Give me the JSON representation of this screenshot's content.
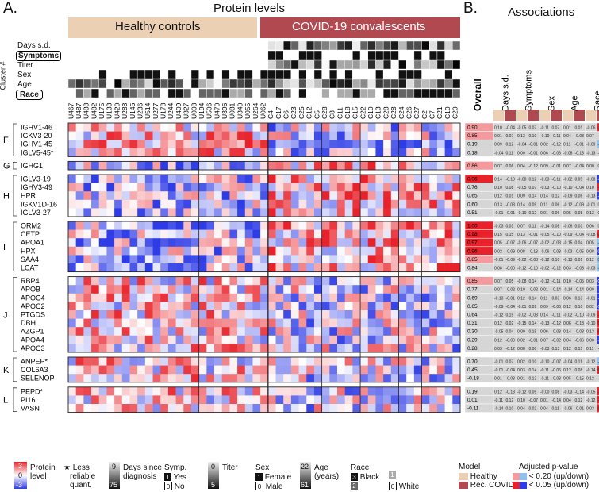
{
  "panel_a": {
    "label": "A.",
    "title": "Protein levels",
    "healthy_label": "Healthy controls",
    "covid_label": "COVID-19 convalescents",
    "cluster_label": "Cluster #",
    "annotation_rows": [
      "Days s.d.",
      "Symptoms",
      "Titer",
      "Sex",
      "Age",
      "Race"
    ],
    "healthy_samples": [
      "U467",
      "U487",
      "U488",
      "U482",
      "U175",
      "U133",
      "U420",
      "U288",
      "U145",
      "U236",
      "U514",
      "U277",
      "U178",
      "U244",
      "U409",
      "U327",
      "U008",
      "U194",
      "U506",
      "U470",
      "U396",
      "U081",
      "U340",
      "U055",
      "U264",
      "U062"
    ],
    "covid_samples": [
      "C4",
      "C17",
      "C6",
      "C23",
      "C25",
      "C12",
      "C5",
      "C28",
      "C8",
      "C11",
      "C18",
      "C15",
      "C22",
      "C10",
      "C13",
      "C28",
      "C28",
      "C24",
      "C26",
      "C27",
      "C2",
      "C7",
      "C21",
      "C10",
      "C20"
    ]
  },
  "panel_b": {
    "label": "B.",
    "title": "Associations",
    "columns": [
      "Overall",
      "Days s.d.",
      "Symptoms",
      "Sex",
      "Age",
      "Race"
    ]
  },
  "legend": {
    "protein_level": "Protein level",
    "protein_ticks": [
      "3",
      "0",
      "-3"
    ],
    "star_note": "Less reliable quant.",
    "days_note": "Days since diagnosis",
    "days_ticks": [
      "9",
      "75"
    ],
    "symp_title": "Symp.",
    "symp_yes": "Yes",
    "symp_no": "No",
    "titer_title": "Titer",
    "titer_ticks": [
      "0",
      "5"
    ],
    "sex_title": "Sex",
    "sex_female": "Female",
    "sex_male": "Male",
    "age_title": "Age (years)",
    "age_ticks": [
      "22",
      "61"
    ],
    "race_title": "Race",
    "race_black": "Black",
    "race_white": "White",
    "race_codes": [
      "3",
      "2",
      "1",
      "0"
    ],
    "model_title": "Model",
    "model_healthy": "Healthy",
    "model_rec": "Rec. COVID",
    "pval_title": "Adjusted p-value",
    "pval_020": "< 0.20 (up/down)",
    "pval_005": "< 0.05 (up/down)"
  },
  "colors": {
    "healthy": "#ecd0b4",
    "covid": "#b04a50",
    "red": "#e8222a",
    "blue": "#2e3ce6",
    "light_red": "#f49a9f",
    "light_blue": "#8fc1ee",
    "grey_cell": "#d6d6d6"
  },
  "chart_data": {
    "type": "heatmap",
    "value_range": [
      -3,
      3
    ],
    "groups": [
      {
        "cluster": "F",
        "proteins": [
          "IGHV1-46",
          "IGKV3-20",
          "IGHV1-45",
          "IGLV5-45*"
        ]
      },
      {
        "cluster": "G",
        "proteins": [
          "IGHG1"
        ]
      },
      {
        "cluster": "H",
        "proteins": [
          "IGLV3-19",
          "IGHV3-49",
          "HPR",
          "IGKV1D-16",
          "IGLV3-27"
        ]
      },
      {
        "cluster": "I",
        "proteins": [
          "ORM2",
          "CETP",
          "APOA1",
          "HPX",
          "SAA4",
          "LCAT"
        ]
      },
      {
        "cluster": "J",
        "proteins": [
          "RBP4",
          "APOB",
          "APOC4",
          "APOC2",
          "PTGDS",
          "DBH",
          "AZGP1",
          "APOA4",
          "APOC3"
        ]
      },
      {
        "cluster": "K",
        "proteins": [
          "ANPEP*",
          "COL6A3",
          "SELENOP"
        ]
      },
      {
        "cluster": "L",
        "proteins": [
          "PEPD*",
          "PI16",
          "VASN"
        ]
      }
    ],
    "overall": [
      "0.90",
      "0.85",
      "0.19",
      "0.18",
      "0.86",
      "0.96",
      "0.76",
      "0.65",
      "0.60",
      "0.51",
      "1.00",
      "0.98",
      "0.97",
      "0.96",
      "0.85",
      "0.84",
      "0.85",
      "0.77",
      "0.69",
      "0.65",
      "0.64",
      "0.31",
      "0.30",
      "0.29",
      "0.28",
      "0.70",
      "0.45",
      "-0.18",
      "0.19",
      "0.01",
      "-0.11"
    ],
    "associations_sample": [
      [
        "0.03",
        "0.01",
        "0.04",
        "0.00",
        "0.01",
        "-0.00",
        "-0.36",
        "-0.23",
        "0.04",
        "0.50"
      ],
      [
        "0.03",
        "-0.01",
        "-0.04",
        "0.00",
        "0.01",
        "0.29",
        "-0.07",
        "-0.54",
        "0.54",
        "0.85"
      ]
    ],
    "association_note": "Each protein row shows 10 association values: Days s.d., Symptoms, Sex, Age, Race for Healthy and Rec. COVID models"
  }
}
